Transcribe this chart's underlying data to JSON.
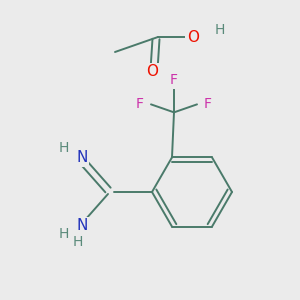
{
  "background_color": "#ebebeb",
  "bond_color": "#4a7a6a",
  "atom_colors": {
    "O": "#ee1100",
    "N": "#2233bb",
    "F": "#cc33aa",
    "H": "#5a8a7a",
    "C": "#4a7a6a"
  },
  "figsize": [
    3.0,
    3.0
  ],
  "dpi": 100
}
